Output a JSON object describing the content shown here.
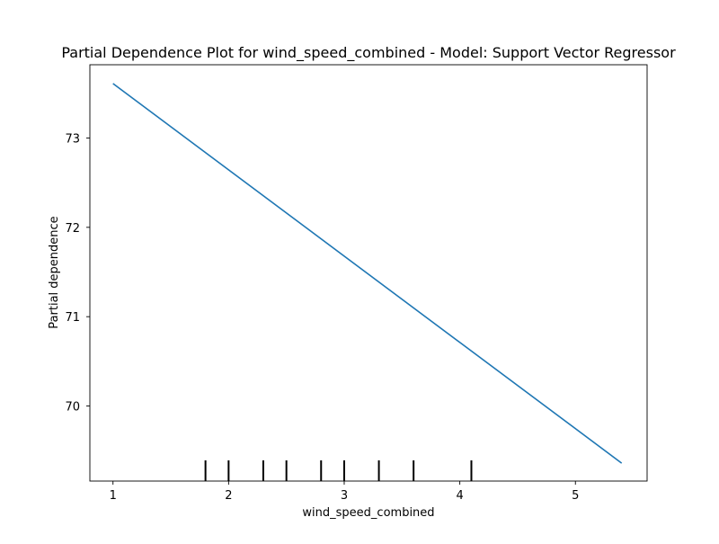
{
  "chart_data": {
    "type": "line",
    "title": "Partial Dependence Plot for wind_speed_combined - Model: Support Vector Regressor",
    "xlabel": "wind_speed_combined",
    "ylabel": "Partial dependence",
    "xlim": [
      0.8,
      5.62
    ],
    "ylim": [
      69.16,
      73.82
    ],
    "x_ticks": [
      1,
      2,
      3,
      4,
      5
    ],
    "y_ticks": [
      70,
      71,
      72,
      73
    ],
    "grid": false,
    "legend": "none",
    "series": [
      {
        "color": "#1f77b4",
        "x": [
          1.0,
          5.4
        ],
        "y": [
          73.61,
          69.36
        ]
      }
    ],
    "rug": {
      "color": "#000000",
      "x": [
        1.8,
        2.0,
        2.3,
        2.5,
        2.8,
        3.0,
        3.3,
        3.6,
        4.1
      ]
    }
  }
}
